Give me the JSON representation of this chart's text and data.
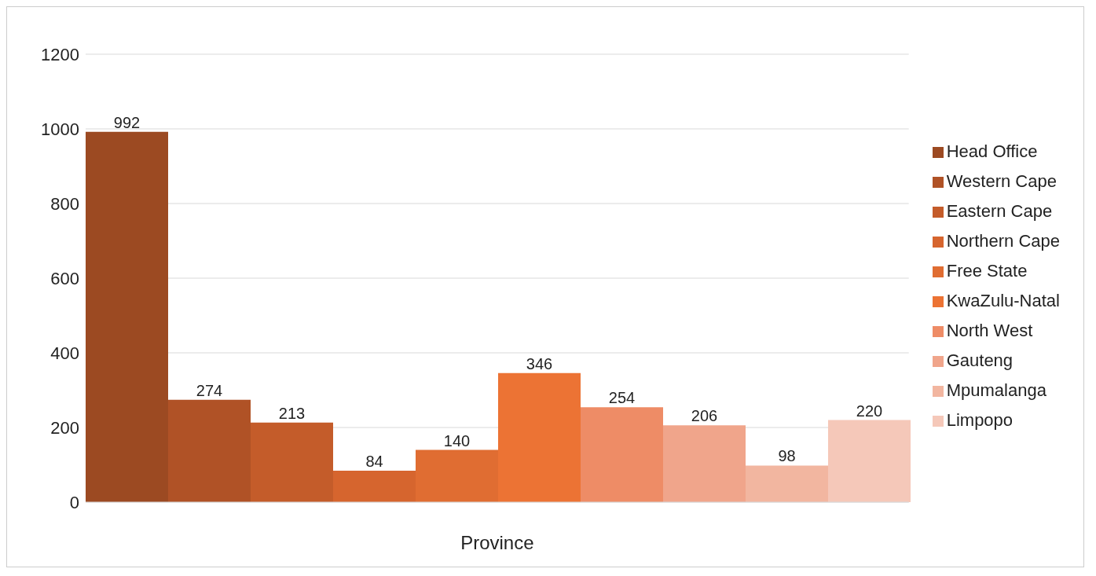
{
  "chart_data": {
    "type": "bar",
    "xlabel": "Province",
    "categories": [
      null
    ],
    "series": [
      {
        "name": "Head Office",
        "color": "#9c4a22",
        "values": [
          992
        ]
      },
      {
        "name": "Western Cape",
        "color": "#b05226",
        "values": [
          274
        ]
      },
      {
        "name": "Eastern Cape",
        "color": "#c45c2a",
        "values": [
          213
        ]
      },
      {
        "name": "Northern Cape",
        "color": "#d6652e",
        "values": [
          84
        ]
      },
      {
        "name": "Free State",
        "color": "#e06d32",
        "values": [
          140
        ]
      },
      {
        "name": "KwaZulu-Natal",
        "color": "#ec7334",
        "values": [
          346
        ]
      },
      {
        "name": "North West",
        "color": "#ee8c66",
        "values": [
          254
        ]
      },
      {
        "name": "Gauteng",
        "color": "#f0a58b",
        "values": [
          206
        ]
      },
      {
        "name": "Mpumalanga",
        "color": "#f2b6a0",
        "values": [
          98
        ]
      },
      {
        "name": "Limpopo",
        "color": "#f5c8b9",
        "values": [
          220
        ]
      }
    ],
    "ylim": [
      0,
      1200
    ],
    "yticks": [
      0,
      200,
      400,
      600,
      800,
      1000,
      1200
    ],
    "grid": "y",
    "legend": "right",
    "data_labels": true
  }
}
